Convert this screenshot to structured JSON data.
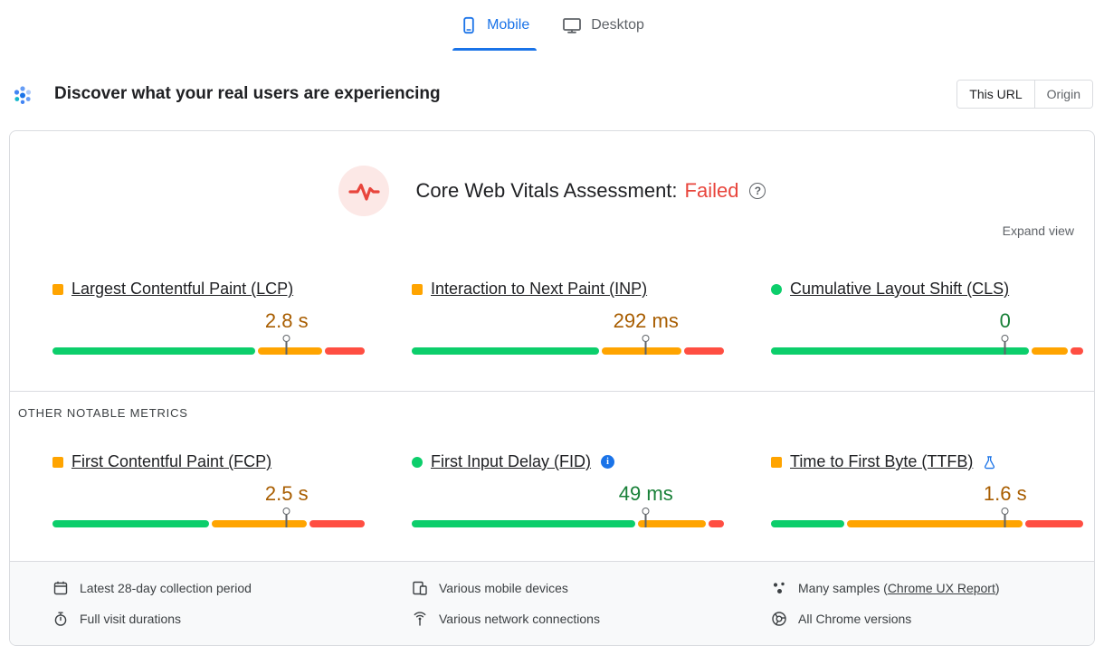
{
  "tabs": [
    {
      "label": "Mobile",
      "icon": "mobile-icon",
      "active": true
    },
    {
      "label": "Desktop",
      "icon": "desktop-icon",
      "active": false
    }
  ],
  "header": {
    "title": "Discover what your real users are experiencing",
    "icon": "field-data-icon",
    "scope_toggle": [
      {
        "label": "This URL",
        "selected": true
      },
      {
        "label": "Origin",
        "selected": false
      }
    ]
  },
  "assessment": {
    "heading": "Core Web Vitals Assessment:",
    "verdict": "Failed",
    "icon": "core-web-vitals-pulse-icon",
    "help_icon": "help-icon",
    "expand_label": "Expand view"
  },
  "sections": {
    "other_metrics": "OTHER NOTABLE METRICS"
  },
  "glyphs": {
    "help": "?",
    "info": "i"
  },
  "metrics": {
    "core": [
      {
        "id": "lcp",
        "label": "Largest Contentful Paint (LCP)",
        "value": "2.8 s",
        "rating": "needs-improvement",
        "distribution": {
          "good": 66,
          "needs_improvement": 21,
          "poor": 13
        },
        "p75_marker_pct": 75
      },
      {
        "id": "inp",
        "label": "Interaction to Next Paint (INP)",
        "value": "292 ms",
        "rating": "needs-improvement",
        "distribution": {
          "good": 61,
          "needs_improvement": 26,
          "poor": 13
        },
        "p75_marker_pct": 75
      },
      {
        "id": "cls",
        "label": "Cumulative Layout Shift (CLS)",
        "value": "0",
        "rating": "good",
        "distribution": {
          "good": 84,
          "needs_improvement": 12,
          "poor": 4
        },
        "p75_marker_pct": 75
      }
    ],
    "other": [
      {
        "id": "fcp",
        "label": "First Contentful Paint (FCP)",
        "value": "2.5 s",
        "rating": "needs-improvement",
        "distribution": {
          "good": 51,
          "needs_improvement": 31,
          "poor": 18
        },
        "p75_marker_pct": 75
      },
      {
        "id": "fid",
        "label": "First Input Delay (FID)",
        "value": "49 ms",
        "rating": "good",
        "trailing_icon": "info-icon",
        "distribution": {
          "good": 73,
          "needs_improvement": 22,
          "poor": 5
        },
        "p75_marker_pct": 75
      },
      {
        "id": "ttfb",
        "label": "Time to First Byte (TTFB)",
        "value": "1.6 s",
        "rating": "needs-improvement",
        "trailing_icon": "experiment-flask-icon",
        "distribution": {
          "good": 24,
          "needs_improvement": 57,
          "poor": 19
        },
        "p75_marker_pct": 75
      }
    ]
  },
  "footer": {
    "items": [
      {
        "icon": "calendar-icon",
        "text": "Latest 28-day collection period"
      },
      {
        "icon": "devices-icon",
        "text": "Various mobile devices"
      },
      {
        "icon": "samples-icon",
        "text_before": "Many samples (",
        "link_text": "Chrome UX Report",
        "text_after": ")"
      },
      {
        "icon": "stopwatch-icon",
        "text": "Full visit durations"
      },
      {
        "icon": "network-icon",
        "text": "Various network connections"
      },
      {
        "icon": "chrome-icon",
        "text": "All Chrome versions"
      }
    ]
  },
  "colors": {
    "accent_blue": "#1a73e8",
    "good_green": "#0cce6b",
    "needs_improvement_orange": "#ffa400",
    "poor_red": "#ff4e42",
    "value_green_text": "#188038",
    "value_orange_text": "#a85d00",
    "failed_red_text": "#e8453c"
  }
}
